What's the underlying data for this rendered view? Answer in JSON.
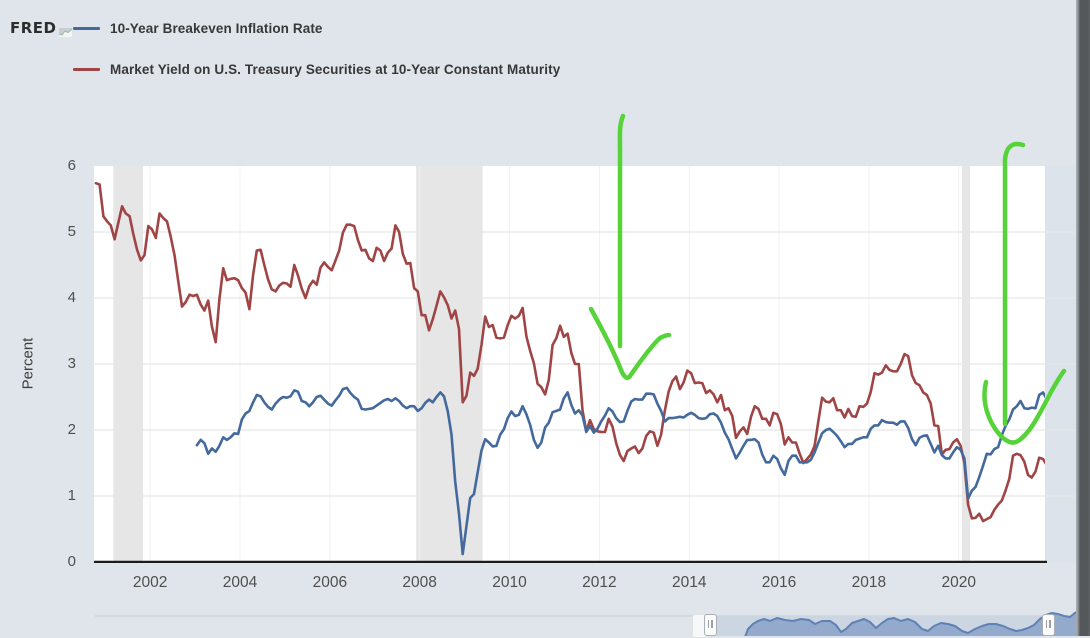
{
  "header": {
    "logo_text": "FRED",
    "legend": [
      {
        "label": "10-Year Breakeven Inflation Rate",
        "color": "#44699d"
      },
      {
        "label": "Market Yield on U.S. Treasury Securities at 10-Year Constant Maturity",
        "color": "#a04545"
      }
    ]
  },
  "chart_data": {
    "type": "line",
    "title": "",
    "ylabel": "Percent",
    "xlabel": "",
    "ylim": [
      0,
      6
    ],
    "xlim": [
      2000.75,
      2021.92
    ],
    "grid": true,
    "y_ticks": [
      0,
      1,
      2,
      3,
      4,
      5,
      6
    ],
    "x_ticks": [
      2002,
      2004,
      2006,
      2008,
      2010,
      2012,
      2014,
      2016,
      2018,
      2020
    ],
    "recession_bands": [
      [
        2001.18,
        2001.84
      ],
      [
        2007.92,
        2009.4
      ],
      [
        2020.07,
        2020.25
      ]
    ],
    "series": [
      {
        "name": "10-Year Breakeven Inflation Rate",
        "color": "#44699d",
        "frequency": "monthly",
        "start_year": 2003,
        "start_month": 1,
        "values": [
          1.77,
          1.85,
          1.8,
          1.64,
          1.72,
          1.67,
          1.76,
          1.89,
          1.85,
          1.89,
          1.95,
          1.94,
          2.16,
          2.25,
          2.29,
          2.42,
          2.53,
          2.51,
          2.42,
          2.35,
          2.31,
          2.4,
          2.46,
          2.5,
          2.49,
          2.51,
          2.6,
          2.58,
          2.44,
          2.42,
          2.36,
          2.42,
          2.5,
          2.52,
          2.46,
          2.4,
          2.37,
          2.45,
          2.52,
          2.62,
          2.64,
          2.56,
          2.5,
          2.46,
          2.32,
          2.31,
          2.32,
          2.33,
          2.37,
          2.41,
          2.45,
          2.47,
          2.44,
          2.48,
          2.44,
          2.37,
          2.33,
          2.36,
          2.36,
          2.29,
          2.33,
          2.41,
          2.46,
          2.42,
          2.5,
          2.57,
          2.51,
          2.28,
          1.93,
          1.22,
          0.73,
          0.12,
          0.55,
          0.97,
          1.03,
          1.36,
          1.69,
          1.86,
          1.81,
          1.75,
          1.76,
          1.93,
          2.01,
          2.18,
          2.28,
          2.21,
          2.23,
          2.36,
          2.24,
          2.08,
          1.85,
          1.73,
          1.81,
          2.04,
          2.11,
          2.27,
          2.29,
          2.31,
          2.48,
          2.57,
          2.38,
          2.25,
          2.3,
          2.22,
          1.97,
          2.06,
          1.96,
          2.02,
          2.13,
          2.22,
          2.33,
          2.28,
          2.18,
          2.12,
          2.13,
          2.29,
          2.43,
          2.47,
          2.46,
          2.46,
          2.55,
          2.55,
          2.54,
          2.4,
          2.29,
          2.13,
          2.18,
          2.18,
          2.19,
          2.2,
          2.19,
          2.23,
          2.26,
          2.23,
          2.18,
          2.17,
          2.18,
          2.24,
          2.25,
          2.21,
          2.11,
          1.96,
          1.86,
          1.71,
          1.57,
          1.66,
          1.76,
          1.85,
          1.85,
          1.86,
          1.81,
          1.63,
          1.51,
          1.51,
          1.61,
          1.56,
          1.42,
          1.32,
          1.53,
          1.61,
          1.61,
          1.51,
          1.51,
          1.51,
          1.55,
          1.66,
          1.81,
          1.95,
          2.0,
          2.02,
          1.97,
          1.91,
          1.83,
          1.74,
          1.79,
          1.79,
          1.85,
          1.87,
          1.89,
          1.89,
          2.02,
          2.07,
          2.07,
          2.15,
          2.12,
          2.11,
          2.11,
          2.08,
          2.13,
          2.13,
          2.03,
          1.86,
          1.77,
          1.88,
          1.91,
          1.92,
          1.79,
          1.66,
          1.76,
          1.62,
          1.57,
          1.57,
          1.66,
          1.74,
          1.7,
          1.57,
          0.96,
          1.08,
          1.14,
          1.29,
          1.46,
          1.64,
          1.63,
          1.71,
          1.74,
          1.92,
          2.06,
          2.16,
          2.31,
          2.36,
          2.44,
          2.33,
          2.32,
          2.34,
          2.33,
          2.53,
          2.57,
          2.47
        ]
      },
      {
        "name": "Market Yield on U.S. Treasury Securities at 10-Year Constant Maturity",
        "color": "#a04545",
        "frequency": "monthly",
        "start_year": 2000,
        "start_month": 10,
        "values": [
          5.74,
          5.72,
          5.24,
          5.16,
          5.1,
          4.89,
          5.14,
          5.39,
          5.28,
          5.24,
          4.97,
          4.73,
          4.57,
          4.65,
          5.09,
          5.04,
          4.91,
          5.28,
          5.21,
          5.16,
          4.93,
          4.65,
          4.26,
          3.87,
          3.94,
          4.05,
          4.03,
          4.05,
          3.9,
          3.81,
          3.96,
          3.57,
          3.33,
          3.98,
          4.45,
          4.27,
          4.29,
          4.3,
          4.27,
          4.15,
          4.08,
          3.83,
          4.35,
          4.72,
          4.73,
          4.5,
          4.28,
          4.13,
          4.1,
          4.19,
          4.23,
          4.22,
          4.17,
          4.5,
          4.34,
          4.14,
          4.0,
          4.18,
          4.26,
          4.2,
          4.46,
          4.54,
          4.47,
          4.42,
          4.57,
          4.72,
          4.99,
          5.11,
          5.11,
          5.09,
          4.88,
          4.72,
          4.73,
          4.6,
          4.56,
          4.76,
          4.72,
          4.56,
          4.69,
          4.75,
          5.1,
          5.0,
          4.67,
          4.52,
          4.53,
          4.15,
          4.1,
          3.74,
          3.74,
          3.51,
          3.68,
          3.88,
          4.1,
          4.01,
          3.89,
          3.69,
          3.81,
          3.53,
          2.42,
          2.52,
          2.87,
          2.82,
          2.93,
          3.29,
          3.72,
          3.56,
          3.59,
          3.4,
          3.39,
          3.4,
          3.59,
          3.73,
          3.69,
          3.73,
          3.85,
          3.42,
          3.2,
          3.01,
          2.7,
          2.65,
          2.54,
          2.76,
          3.29,
          3.39,
          3.58,
          3.41,
          3.46,
          3.17,
          3.0,
          3.0,
          2.3,
          1.98,
          2.15,
          2.01,
          1.98,
          1.97,
          1.97,
          2.17,
          2.05,
          1.8,
          1.62,
          1.53,
          1.68,
          1.72,
          1.75,
          1.65,
          1.72,
          1.91,
          1.98,
          1.96,
          1.76,
          1.93,
          2.3,
          2.58,
          2.74,
          2.81,
          2.62,
          2.72,
          2.9,
          2.86,
          2.71,
          2.72,
          2.71,
          2.56,
          2.6,
          2.54,
          2.42,
          2.53,
          2.3,
          2.33,
          2.21,
          1.88,
          1.98,
          2.04,
          1.94,
          2.2,
          2.36,
          2.32,
          2.17,
          2.17,
          2.07,
          2.26,
          2.24,
          2.09,
          1.78,
          1.89,
          1.81,
          1.81,
          1.64,
          1.5,
          1.56,
          1.63,
          1.76,
          2.14,
          2.49,
          2.43,
          2.42,
          2.48,
          2.3,
          2.3,
          2.19,
          2.32,
          2.21,
          2.2,
          2.36,
          2.35,
          2.4,
          2.58,
          2.86,
          2.84,
          2.87,
          2.98,
          2.91,
          2.89,
          2.89,
          3.0,
          3.15,
          3.12,
          2.83,
          2.71,
          2.68,
          2.57,
          2.53,
          2.4,
          2.07,
          2.06,
          1.63,
          1.7,
          1.71,
          1.81,
          1.86,
          1.76,
          1.5,
          0.87,
          0.66,
          0.67,
          0.73,
          0.62,
          0.65,
          0.68,
          0.79,
          0.87,
          0.93,
          1.08,
          1.26,
          1.61,
          1.64,
          1.62,
          1.52,
          1.32,
          1.28,
          1.37,
          1.58,
          1.56,
          1.47
        ]
      }
    ],
    "annotations": [
      {
        "name": "hand-drawn-down-arrow-2012",
        "color": "#55d339",
        "stroke_width": 4.5,
        "paths": [
          "M623,116 C619,126 620,134 620,150 L620,346",
          "M591,309 C601,327 614,352 621,370 C624,377 627,380 630,376 C637,366 650,347 660,338 C664,336 667,335 669,335"
        ]
      },
      {
        "name": "hand-drawn-down-arrow-2021",
        "color": "#55d339",
        "stroke_width": 4.5,
        "paths": [
          "M1023,145 C1013,142 1006,146 1005,160 L1005,424",
          "M986,382 C982,398 986,414 994,427 C1001,438 1010,446 1018,441 C1031,433 1042,409 1051,392 C1055,385 1060,376 1064,371"
        ]
      }
    ],
    "colors": {
      "plot_bg": "#ffffff",
      "page_bg": "#dfe5ea",
      "recession_band": "#e6e6e6",
      "gridline_h": "#e7e7e7",
      "gridline_v": "#f1f1f1",
      "axis_line": "#1c1c1c",
      "tick_text": "#4f4f4f",
      "right_overlay": "#dce3ea"
    }
  },
  "range_selector": {
    "handle_count": 2,
    "area_fill": "#8da5ca",
    "area_line": "#5f82b4",
    "selected_bg": "#ccd6e3",
    "preview_points": [
      [
        745,
        637
      ],
      [
        748,
        629
      ],
      [
        753,
        624
      ],
      [
        758,
        621
      ],
      [
        764,
        619
      ],
      [
        770,
        621
      ],
      [
        777,
        618
      ],
      [
        785,
        620
      ],
      [
        793,
        621
      ],
      [
        801,
        619
      ],
      [
        809,
        620
      ],
      [
        815,
        624
      ],
      [
        822,
        621
      ],
      [
        830,
        621
      ],
      [
        836,
        625
      ],
      [
        841,
        632
      ],
      [
        846,
        629
      ],
      [
        852,
        623
      ],
      [
        858,
        621
      ],
      [
        864,
        619
      ],
      [
        870,
        622
      ],
      [
        876,
        628
      ],
      [
        882,
        623
      ],
      [
        888,
        619
      ],
      [
        894,
        618
      ],
      [
        901,
        621
      ],
      [
        908,
        619
      ],
      [
        915,
        622
      ],
      [
        922,
        629
      ],
      [
        928,
        631
      ],
      [
        934,
        626
      ],
      [
        941,
        623
      ],
      [
        948,
        624
      ],
      [
        955,
        626
      ],
      [
        962,
        631
      ],
      [
        968,
        633
      ],
      [
        975,
        629
      ],
      [
        982,
        626
      ],
      [
        989,
        624
      ],
      [
        996,
        624
      ],
      [
        1003,
        626
      ],
      [
        1010,
        629
      ],
      [
        1016,
        631
      ],
      [
        1022,
        630
      ],
      [
        1028,
        628
      ],
      [
        1034,
        625
      ],
      [
        1040,
        619
      ],
      [
        1046,
        615
      ],
      [
        1052,
        613
      ],
      [
        1058,
        614
      ],
      [
        1064,
        616
      ],
      [
        1070,
        617
      ],
      [
        1076,
        612
      ]
    ]
  }
}
